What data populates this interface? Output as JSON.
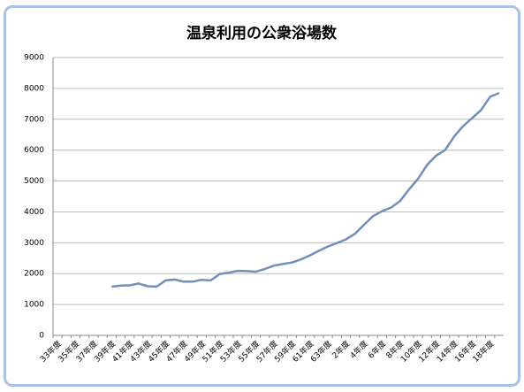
{
  "chart_data": {
    "type": "line",
    "title": "温泉利用の公衆浴場数",
    "categories": [
      "33年度",
      null,
      "35年度",
      null,
      "37年度",
      null,
      "39年度",
      null,
      "41年度",
      null,
      "43年度",
      null,
      "45年度",
      null,
      "47年度",
      null,
      "49年度",
      null,
      "51年度",
      null,
      "53年度",
      null,
      "55年度",
      null,
      "57年度",
      null,
      "59年度",
      null,
      "61年度",
      null,
      "63年度",
      null,
      "2年度",
      null,
      "4年度",
      null,
      "6年度",
      null,
      "8年度",
      null,
      "10年度",
      null,
      "12年度",
      null,
      "14年度",
      null,
      "16年度",
      null,
      "18年度",
      null
    ],
    "series": [
      {
        "color": "#6f8fbd",
        "values": [
          null,
          null,
          null,
          null,
          null,
          null,
          1580,
          1610,
          1620,
          1680,
          1590,
          1580,
          1780,
          1810,
          1740,
          1740,
          1800,
          1780,
          1990,
          2030,
          2090,
          2080,
          2060,
          2150,
          2260,
          2310,
          2360,
          2460,
          2590,
          2740,
          2880,
          2990,
          3110,
          3290,
          3580,
          3860,
          4020,
          4140,
          4350,
          4730,
          5070,
          5520,
          5820,
          6000,
          6440,
          6780,
          7040,
          7300,
          7730,
          7850
        ]
      }
    ],
    "ylim": [
      0,
      9000
    ],
    "yticks": [
      0,
      1000,
      2000,
      3000,
      4000,
      5000,
      6000,
      7000,
      8000,
      9000
    ],
    "grid": true
  }
}
